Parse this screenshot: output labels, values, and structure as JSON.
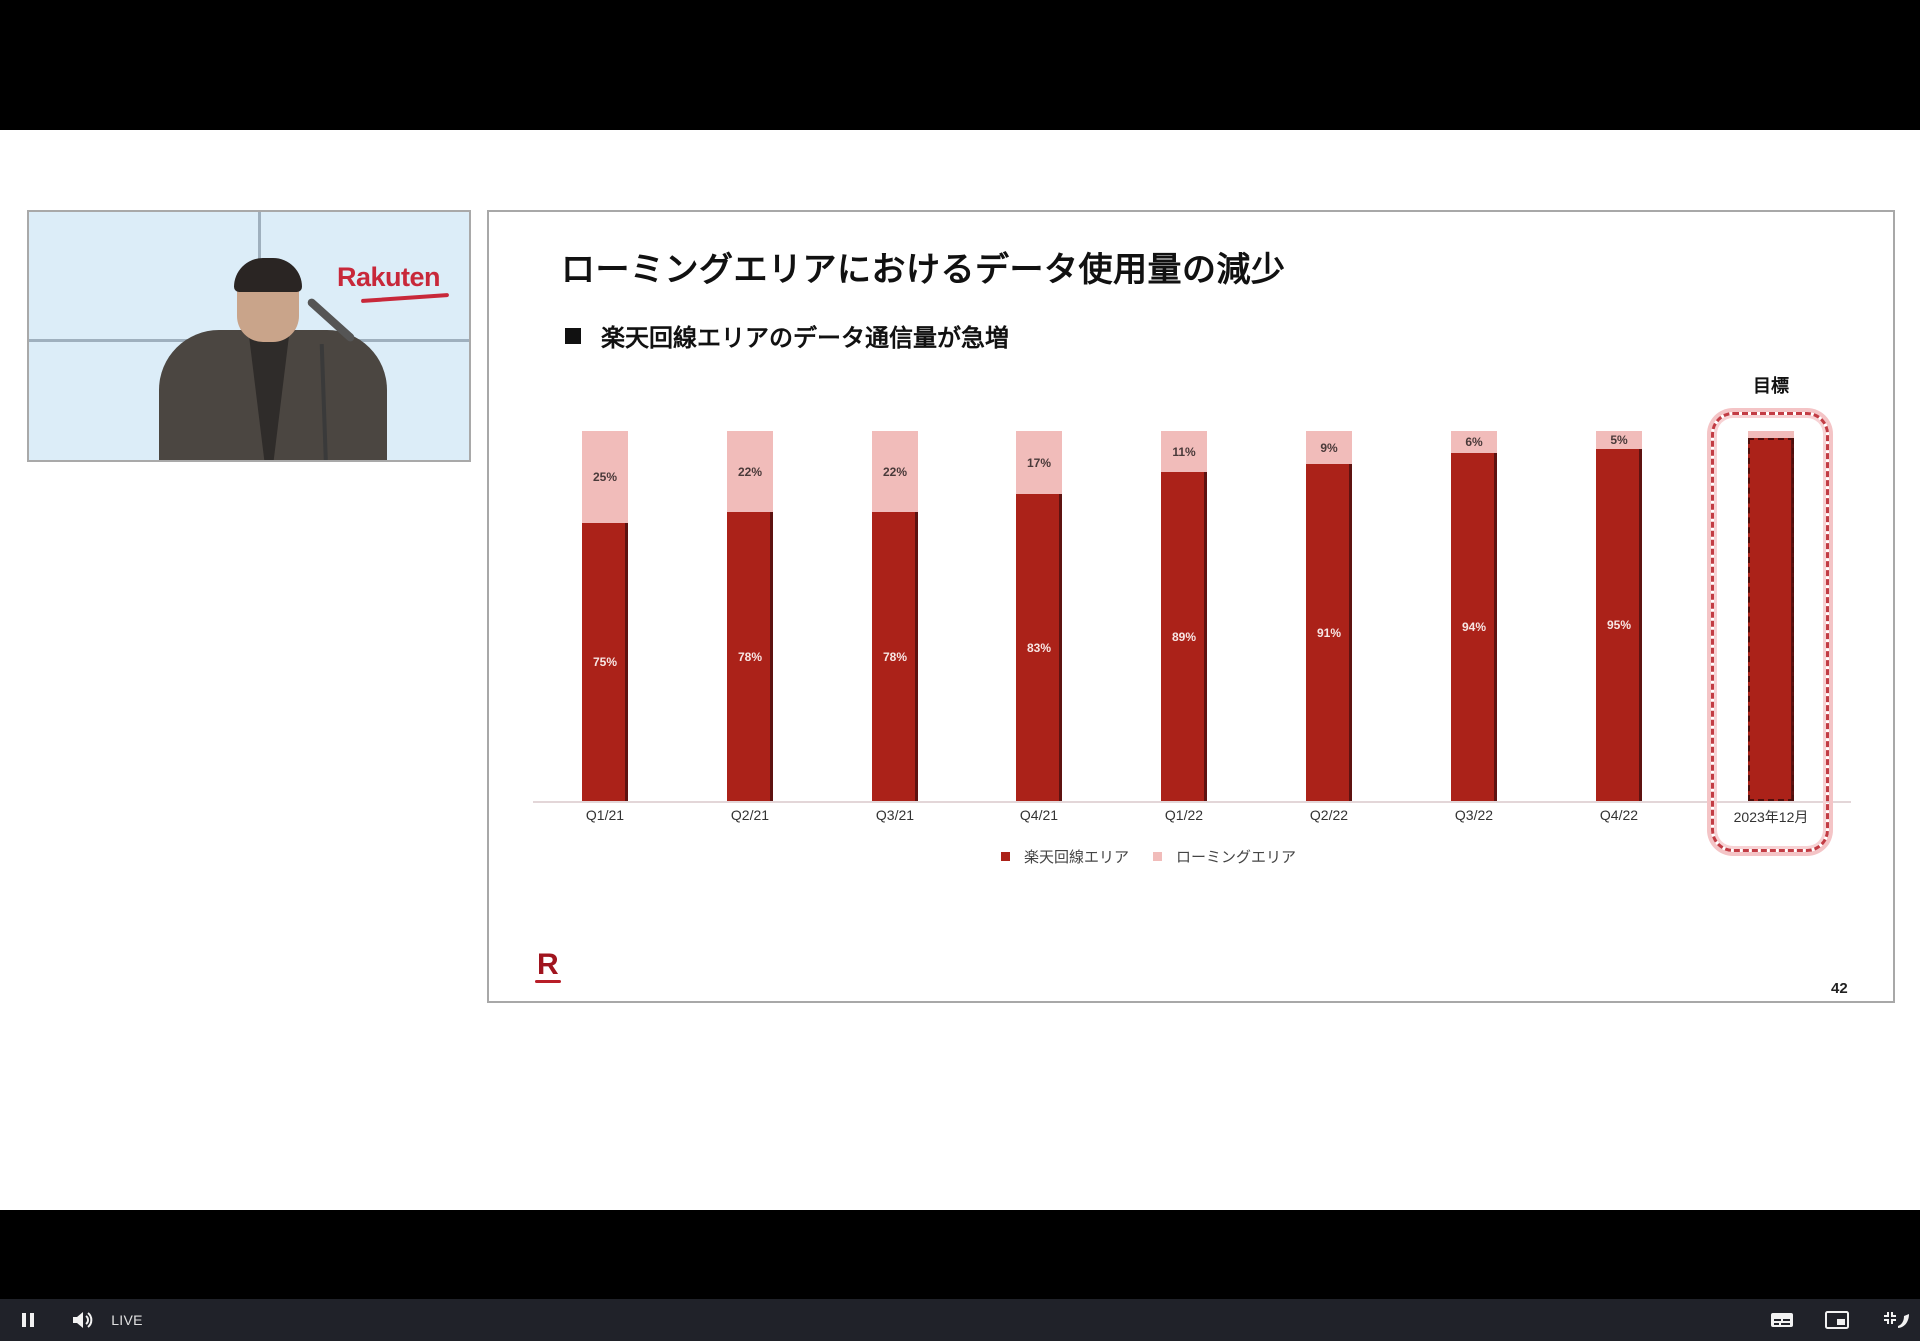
{
  "player": {
    "live_label": "LIVE",
    "icons": {
      "pause": "pause-icon",
      "volume": "volume-icon",
      "captions": "captions-icon",
      "pip": "picture-in-picture-icon",
      "exit_fullscreen": "exit-fullscreen-icon"
    }
  },
  "video": {
    "brand_logo_text": "Rakuten"
  },
  "slide": {
    "title": "ローミングエリアにおけるデータ使用量の減少",
    "subtitle": "楽天回線エリアのデータ通信量が急増",
    "target_heading": "目標",
    "legend": {
      "rakuten": "楽天回線エリア",
      "roaming": "ローミングエリア"
    },
    "footer_logo": "R",
    "page_number": "42",
    "colors": {
      "rakuten": "#ab2219",
      "roaming": "#f1bcba",
      "target_outline": "#c23c44"
    }
  },
  "chart_data": {
    "type": "bar",
    "stacked": true,
    "percent": true,
    "title": "ローミングエリアにおけるデータ使用量の減少",
    "subtitle": "楽天回線エリアのデータ通信量が急増",
    "categories": [
      "Q1/21",
      "Q2/21",
      "Q3/21",
      "Q4/21",
      "Q1/22",
      "Q2/22",
      "Q3/22",
      "Q4/22",
      "2023年12月"
    ],
    "series": [
      {
        "name": "楽天回線エリア",
        "values": [
          75,
          78,
          78,
          83,
          89,
          91,
          94,
          95,
          98
        ],
        "labels": [
          "75%",
          "78%",
          "78%",
          "83%",
          "89%",
          "91%",
          "94%",
          "95%",
          ""
        ]
      },
      {
        "name": "ローミングエリア",
        "values": [
          25,
          22,
          22,
          17,
          11,
          9,
          6,
          5,
          2
        ],
        "labels": [
          "25%",
          "22%",
          "22%",
          "17%",
          "11%",
          "9%",
          "6%",
          "5%",
          ""
        ]
      }
    ],
    "annotations": [
      {
        "category": "2023年12月",
        "text": "目標",
        "style": "dashed-highlight"
      }
    ],
    "xlabel": "",
    "ylabel": "",
    "ylim": [
      0,
      100
    ],
    "grid": false,
    "legend_position": "bottom"
  }
}
